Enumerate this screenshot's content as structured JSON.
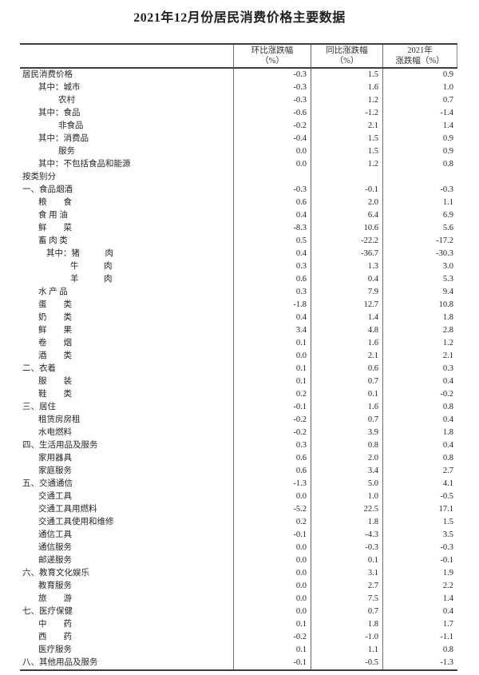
{
  "title": "2021年12月份居民消费价格主要数据",
  "table": {
    "headers": {
      "category": "",
      "mom_line1": "环比涨跌幅",
      "mom_line2": "（%）",
      "yoy_line1": "同比涨跌幅",
      "yoy_line2": "（%）",
      "annual_line1": "2021年",
      "annual_line2": "涨跌幅（%）"
    },
    "rows": [
      {
        "label": "居民消费价格",
        "indent": 0,
        "mom": "-0.3",
        "yoy": "1.5",
        "annual": "0.9"
      },
      {
        "label": "其中：城市",
        "indent": 1,
        "mom": "-0.3",
        "yoy": "1.6",
        "annual": "1.0"
      },
      {
        "label": "农村",
        "indent": 2,
        "mom": "-0.3",
        "yoy": "1.2",
        "annual": "0.7"
      },
      {
        "label": "其中：食品",
        "indent": 1,
        "mom": "-0.6",
        "yoy": "-1.2",
        "annual": "-1.4"
      },
      {
        "label": "非食品",
        "indent": 2,
        "mom": "-0.2",
        "yoy": "2.1",
        "annual": "1.4"
      },
      {
        "label": "其中：消费品",
        "indent": 1,
        "mom": "-0.4",
        "yoy": "1.5",
        "annual": "0.9"
      },
      {
        "label": "服务",
        "indent": 2,
        "mom": "0.0",
        "yoy": "1.5",
        "annual": "0.9"
      },
      {
        "label": "其中：不包括食品和能源",
        "indent": 1,
        "mom": "0.0",
        "yoy": "1.2",
        "annual": "0.8"
      },
      {
        "label": "按类别分",
        "indent": 0,
        "mom": "",
        "yoy": "",
        "annual": ""
      },
      {
        "label": "一、食品烟酒",
        "indent": 0,
        "mom": "-0.3",
        "yoy": "-0.1",
        "annual": "-0.3"
      },
      {
        "label": "粮　　食",
        "indent": 1,
        "mom": "0.6",
        "yoy": "2.0",
        "annual": "1.1"
      },
      {
        "label": "食 用 油",
        "indent": 1,
        "mom": "0.4",
        "yoy": "6.4",
        "annual": "6.9"
      },
      {
        "label": "鲜　　菜",
        "indent": 1,
        "mom": "-8.3",
        "yoy": "10.6",
        "annual": "5.6"
      },
      {
        "label": "畜 肉 类",
        "indent": 1,
        "mom": "0.5",
        "yoy": "-22.2",
        "annual": "-17.2"
      },
      {
        "label": "其中：猪　　　肉",
        "indent": 3,
        "mom": "0.4",
        "yoy": "-36.7",
        "annual": "-30.3"
      },
      {
        "label": "牛　　　肉",
        "indent": 4,
        "mom": "0.3",
        "yoy": "1.3",
        "annual": "3.0"
      },
      {
        "label": "羊　　　肉",
        "indent": 4,
        "mom": "0.6",
        "yoy": "0.4",
        "annual": "5.3"
      },
      {
        "label": "水 产 品",
        "indent": 1,
        "mom": "0.3",
        "yoy": "7.9",
        "annual": "9.4"
      },
      {
        "label": "蛋　　类",
        "indent": 1,
        "mom": "-1.8",
        "yoy": "12.7",
        "annual": "10.8"
      },
      {
        "label": "奶　　类",
        "indent": 1,
        "mom": "0.4",
        "yoy": "1.4",
        "annual": "1.8"
      },
      {
        "label": "鲜　　果",
        "indent": 1,
        "mom": "3.4",
        "yoy": "4.8",
        "annual": "2.8"
      },
      {
        "label": "卷　　烟",
        "indent": 1,
        "mom": "0.1",
        "yoy": "1.6",
        "annual": "1.2"
      },
      {
        "label": "酒　　类",
        "indent": 1,
        "mom": "0.0",
        "yoy": "2.1",
        "annual": "2.1"
      },
      {
        "label": "二、衣着",
        "indent": 0,
        "mom": "0.1",
        "yoy": "0.6",
        "annual": "0.3"
      },
      {
        "label": "服　　装",
        "indent": 1,
        "mom": "0.1",
        "yoy": "0.7",
        "annual": "0.4"
      },
      {
        "label": "鞋　　类",
        "indent": 1,
        "mom": "0.2",
        "yoy": "0.1",
        "annual": "-0.2"
      },
      {
        "label": "三、居住",
        "indent": 0,
        "mom": "-0.1",
        "yoy": "1.6",
        "annual": "0.8"
      },
      {
        "label": "租赁房房租",
        "indent": 1,
        "mom": "-0.2",
        "yoy": "0.7",
        "annual": "0.4"
      },
      {
        "label": "水电燃料",
        "indent": 1,
        "mom": "-0.2",
        "yoy": "3.9",
        "annual": "1.8"
      },
      {
        "label": "四、生活用品及服务",
        "indent": 0,
        "mom": "0.3",
        "yoy": "0.8",
        "annual": "0.4"
      },
      {
        "label": "家用器具",
        "indent": 1,
        "mom": "0.6",
        "yoy": "2.0",
        "annual": "0.8"
      },
      {
        "label": "家庭服务",
        "indent": 1,
        "mom": "0.6",
        "yoy": "3.4",
        "annual": "2.7"
      },
      {
        "label": "五、交通通信",
        "indent": 0,
        "mom": "-1.3",
        "yoy": "5.0",
        "annual": "4.1"
      },
      {
        "label": "交通工具",
        "indent": 1,
        "mom": "0.0",
        "yoy": "1.0",
        "annual": "-0.5"
      },
      {
        "label": "交通工具用燃料",
        "indent": 1,
        "mom": "-5.2",
        "yoy": "22.5",
        "annual": "17.1"
      },
      {
        "label": "交通工具使用和维修",
        "indent": 1,
        "mom": "0.2",
        "yoy": "1.8",
        "annual": "1.5"
      },
      {
        "label": "通信工具",
        "indent": 1,
        "mom": "-0.1",
        "yoy": "-4.3",
        "annual": "3.5"
      },
      {
        "label": "通信服务",
        "indent": 1,
        "mom": "0.0",
        "yoy": "-0.3",
        "annual": "-0.3"
      },
      {
        "label": "邮递服务",
        "indent": 1,
        "mom": "0.0",
        "yoy": "0.1",
        "annual": "-0.1"
      },
      {
        "label": "六、教育文化娱乐",
        "indent": 0,
        "mom": "0.0",
        "yoy": "3.1",
        "annual": "1.9"
      },
      {
        "label": "教育服务",
        "indent": 1,
        "mom": "0.0",
        "yoy": "2.7",
        "annual": "2.2"
      },
      {
        "label": "旅　　游",
        "indent": 1,
        "mom": "0.0",
        "yoy": "7.5",
        "annual": "1.4"
      },
      {
        "label": "七、医疗保健",
        "indent": 0,
        "mom": "0.0",
        "yoy": "0.7",
        "annual": "0.4"
      },
      {
        "label": "中　　药",
        "indent": 1,
        "mom": "0.1",
        "yoy": "1.8",
        "annual": "1.7"
      },
      {
        "label": "西　　药",
        "indent": 1,
        "mom": "-0.2",
        "yoy": "-1.0",
        "annual": "-1.1"
      },
      {
        "label": "医疗服务",
        "indent": 1,
        "mom": "0.1",
        "yoy": "1.1",
        "annual": "0.8"
      },
      {
        "label": "八、其他用品及服务",
        "indent": 0,
        "mom": "-0.1",
        "yoy": "-0.5",
        "annual": "-1.3"
      }
    ]
  }
}
